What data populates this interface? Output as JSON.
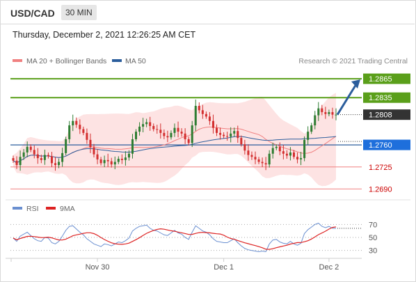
{
  "header": {
    "symbol": "USD/CAD",
    "timeframe": "30 MIN",
    "datetime": "Thursday, December 2, 2021 12:26:25 AM CET"
  },
  "legend": {
    "ma20": "MA 20 + Bollinger Bands",
    "ma50": "MA 50",
    "copyright": "Research © 2021 Trading Central"
  },
  "colors": {
    "up": "#2e7d32",
    "down": "#d32f2f",
    "resistance": "#5a9f1a",
    "support": "#f08080",
    "support_text": "#cc0000",
    "ma50": "#2b5d9c",
    "ma20": "#f08080",
    "band": "#fde3e3",
    "rsi": "#6a8fd0",
    "rsi_ma": "#dd2222",
    "arrow": "#2b5d9c"
  },
  "chart_data": [
    {
      "type": "candlestick",
      "ylim": [
        1.2675,
        1.2885
      ],
      "x_labels": [
        "Nov 30",
        "Dec 1",
        "Dec 2"
      ],
      "levels": {
        "resistance": [
          1.2865,
          1.2835
        ],
        "support": [
          1.2725,
          1.269
        ],
        "pivot": 1.276,
        "last": 1.2808
      },
      "level_labels": {
        "r2": "1.2865",
        "r1": "1.2835",
        "last": "1.2808",
        "pivot": "1.2760",
        "s1": "1.2725",
        "s2": "1.2690"
      },
      "arrow_target": 1.2865,
      "closes": [
        1.2735,
        1.2728,
        1.2741,
        1.2748,
        1.2757,
        1.2752,
        1.2745,
        1.2739,
        1.2736,
        1.2744,
        1.2742,
        1.2731,
        1.2728,
        1.2733,
        1.2747,
        1.2769,
        1.2791,
        1.2798,
        1.2792,
        1.2785,
        1.2779,
        1.2768,
        1.2756,
        1.2745,
        1.2737,
        1.2731,
        1.2736,
        1.2734,
        1.2729,
        1.2733,
        1.2738,
        1.2736,
        1.274,
        1.2746,
        1.2769,
        1.2781,
        1.2789,
        1.2793,
        1.2796,
        1.279,
        1.2785,
        1.2784,
        1.2779,
        1.2774,
        1.2772,
        1.2779,
        1.2787,
        1.2781,
        1.2778,
        1.2769,
        1.2763,
        1.2791,
        1.2822,
        1.2815,
        1.2809,
        1.2805,
        1.2798,
        1.2787,
        1.2779,
        1.2776,
        1.2774,
        1.2773,
        1.2778,
        1.2782,
        1.2771,
        1.2761,
        1.2751,
        1.2744,
        1.2741,
        1.2737,
        1.2733,
        1.2731,
        1.2729,
        1.2746,
        1.2755,
        1.2757,
        1.275,
        1.2746,
        1.2743,
        1.2748,
        1.2741,
        1.2737,
        1.2739,
        1.2768,
        1.2781,
        1.2791,
        1.2807,
        1.2818,
        1.2812,
        1.2809,
        1.2812,
        1.2808,
        1.2808
      ],
      "rsi": {
        "legend_rsi": "RSI",
        "legend_ma": "9MA",
        "ylim": [
          20,
          80
        ],
        "levels": [
          70,
          50,
          30
        ],
        "level_labels": [
          "70",
          "50",
          "30"
        ],
        "values": [
          49,
          44,
          52,
          55,
          58,
          53,
          48,
          45,
          44,
          50,
          49,
          42,
          40,
          44,
          52,
          61,
          67,
          68,
          63,
          58,
          54,
          48,
          44,
          40,
          38,
          36,
          40,
          39,
          37,
          40,
          43,
          42,
          45,
          49,
          60,
          64,
          67,
          68,
          69,
          64,
          61,
          60,
          57,
          54,
          53,
          57,
          61,
          57,
          55,
          50,
          47,
          58,
          68,
          64,
          60,
          58,
          54,
          48,
          44,
          43,
          42,
          42,
          45,
          48,
          42,
          37,
          33,
          31,
          30,
          29,
          28,
          29,
          28,
          40,
          46,
          47,
          43,
          41,
          40,
          44,
          40,
          38,
          41,
          56,
          62,
          66,
          70,
          72,
          67,
          65,
          67,
          64,
          64
        ]
      }
    }
  ]
}
